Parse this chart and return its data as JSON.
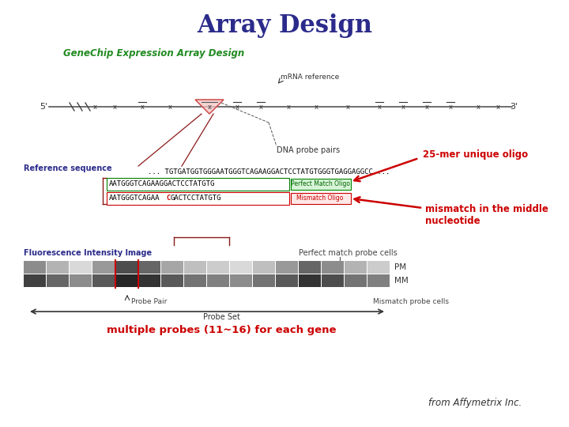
{
  "title": "Array Design",
  "title_color": "#2b2b8b",
  "title_fontsize": 22,
  "subtitle": "GeneChip Expression Array Design",
  "subtitle_color": "#228B22",
  "subtitle_fontsize": 8.5,
  "mrna_label": "mRNA reference",
  "dna_label": "DNA probe pairs",
  "ref_seq_label": "Reference sequence",
  "ref_seq_text": "... TGTGATGGTGGGAATGGGTCAGAAGGACTCCTATGTGGGTGAGGAGGCC ...",
  "pm_seq": "AATGGGTCAGAAGGACTCCTATGTG",
  "mm_seq_p1": "AATGGGTCAGAA",
  "mm_seq_mid": "C",
  "mm_seq_p2": "GACTCCTATGTG",
  "pm_box_label": "Perfect Match Oligo",
  "mm_box_label": "Mismatch Oligo",
  "annotation1": "25-mer unique oligo",
  "annotation1_color": "#cc0000",
  "annotation2": "mismatch in the middle\nnucleotide",
  "annotation2_color": "#cc0000",
  "fluor_label": "Fluorescence Intensity Image",
  "pm_cells_label": "Perfect match probe cells",
  "mm_cells_label": "Mismatch probe cells",
  "probe_pair_label": "Probe Pair",
  "probe_set_label": "Probe Set",
  "pm_band_label": "PM",
  "mm_band_label": "MM",
  "multiple_probes_text": "multiple probes (11~16) for each gene",
  "multiple_probes_color": "#cc0000",
  "affymetrix_text": "from Affymetrix Inc.",
  "bg_color": "#ffffff",
  "5prime": "5'",
  "3prime": "3'",
  "pm_grays": [
    0.55,
    0.7,
    0.85,
    0.6,
    0.3,
    0.4,
    0.65,
    0.75,
    0.8,
    0.85,
    0.75,
    0.6,
    0.4,
    0.55,
    0.7,
    0.8
  ],
  "mm_grays": [
    0.25,
    0.4,
    0.55,
    0.35,
    0.15,
    0.2,
    0.35,
    0.45,
    0.5,
    0.55,
    0.45,
    0.35,
    0.2,
    0.3,
    0.45,
    0.5
  ]
}
